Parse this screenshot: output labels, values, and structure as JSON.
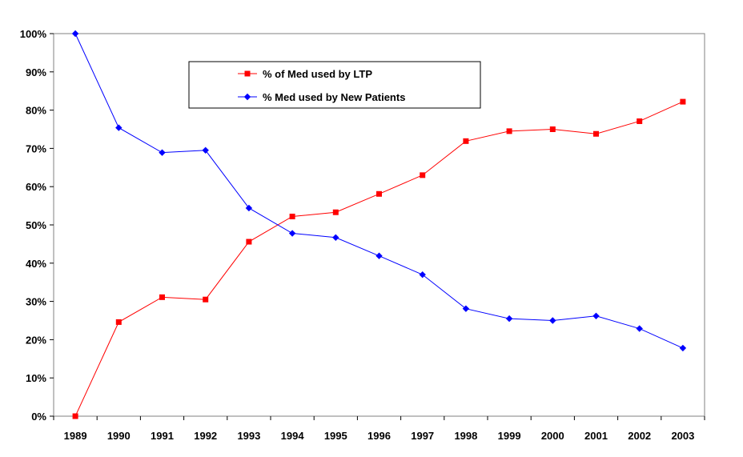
{
  "chart_data": {
    "type": "line",
    "x": [
      "1989",
      "1990",
      "1991",
      "1992",
      "1993",
      "1994",
      "1995",
      "1996",
      "1997",
      "1998",
      "1999",
      "2000",
      "2001",
      "2002",
      "2003"
    ],
    "ylim": [
      0,
      100
    ],
    "yticks": [
      "0%",
      "10%",
      "20%",
      "30%",
      "40%",
      "50%",
      "60%",
      "70%",
      "80%",
      "90%",
      "100%"
    ],
    "grid": false,
    "legend_placement": "top-center",
    "series": [
      {
        "name": "% of Med used by LTP",
        "color": "#ff0000",
        "marker": "square",
        "values": [
          0,
          24.6,
          31.1,
          30.5,
          45.6,
          52.2,
          53.3,
          58.1,
          63.0,
          71.9,
          74.5,
          75.0,
          73.8,
          77.1,
          82.2
        ]
      },
      {
        "name": "% Med used by New Patients",
        "color": "#0000ff",
        "marker": "diamond",
        "values": [
          100,
          75.4,
          68.9,
          69.5,
          54.4,
          47.8,
          46.7,
          41.9,
          37.0,
          28.1,
          25.5,
          25.0,
          26.2,
          22.9,
          17.8
        ]
      }
    ]
  }
}
